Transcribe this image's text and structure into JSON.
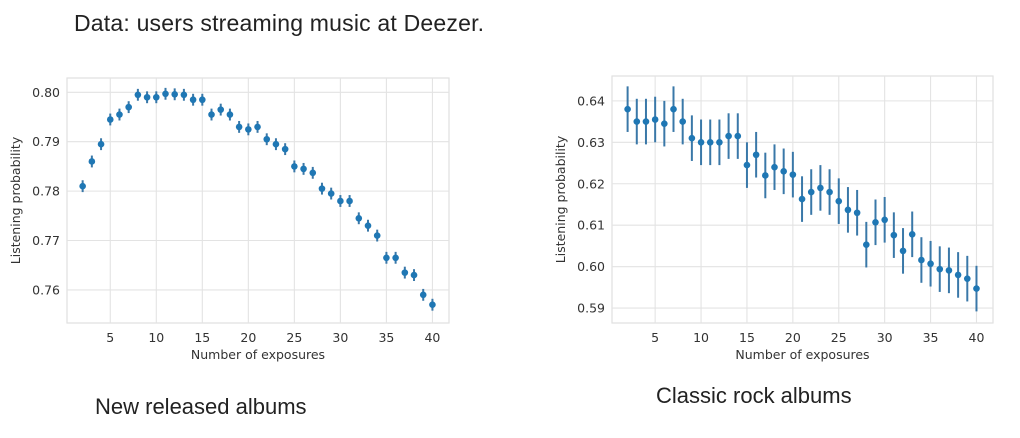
{
  "slide": {
    "title": "Data: users streaming music at Deezer."
  },
  "captions": {
    "left": "New released albums",
    "right": "Classic rock albums"
  },
  "colors": {
    "marker": "#1f77b4",
    "errorbar": "#3a78a8",
    "grid": "#e3e3e3",
    "frame": "#e0e0e0"
  },
  "chart_data": [
    {
      "type": "scatter",
      "title": "New released albums",
      "xlabel": "Number of exposures",
      "ylabel": "Listening probability",
      "xlim": [
        0.3,
        41.8
      ],
      "ylim": [
        0.7533,
        0.8029
      ],
      "xticks": [
        5,
        10,
        15,
        20,
        25,
        30,
        35,
        40
      ],
      "yticks": [
        0.76,
        0.77,
        0.78,
        0.79,
        0.8
      ],
      "ytick_labels": [
        "0.76",
        "0.77",
        "0.78",
        "0.79",
        "0.80"
      ],
      "grid": true,
      "error_bars": true,
      "error_halfwidth": 0.0012,
      "x": [
        2,
        3,
        4,
        5,
        6,
        7,
        8,
        9,
        10,
        11,
        12,
        13,
        14,
        15,
        16,
        17,
        18,
        19,
        20,
        21,
        22,
        23,
        24,
        25,
        26,
        27,
        28,
        29,
        30,
        31,
        32,
        33,
        34,
        35,
        36,
        37,
        38,
        39,
        40
      ],
      "values": [
        0.781,
        0.786,
        0.7895,
        0.7945,
        0.7955,
        0.797,
        0.7995,
        0.799,
        0.799,
        0.7997,
        0.7996,
        0.7995,
        0.7985,
        0.7985,
        0.7955,
        0.7965,
        0.7955,
        0.793,
        0.7925,
        0.793,
        0.7905,
        0.7895,
        0.7885,
        0.785,
        0.7845,
        0.7837,
        0.7805,
        0.7795,
        0.778,
        0.778,
        0.7745,
        0.773,
        0.771,
        0.7665,
        0.7665,
        0.7635,
        0.763,
        0.759,
        0.757
      ]
    },
    {
      "type": "scatter",
      "title": "Classic rock albums",
      "xlabel": "Number of exposures",
      "ylabel": "Listening probability",
      "xlim": [
        0.3,
        41.8
      ],
      "ylim": [
        0.5864,
        0.646
      ],
      "xticks": [
        5,
        10,
        15,
        20,
        25,
        30,
        35,
        40
      ],
      "yticks": [
        0.59,
        0.6,
        0.61,
        0.62,
        0.63,
        0.64
      ],
      "ytick_labels": [
        "0.59",
        "0.60",
        "0.61",
        "0.62",
        "0.63",
        "0.64"
      ],
      "grid": true,
      "error_bars": true,
      "error_halfwidth": 0.0055,
      "x": [
        2,
        3,
        4,
        5,
        6,
        7,
        8,
        9,
        10,
        11,
        12,
        13,
        14,
        15,
        16,
        17,
        18,
        19,
        20,
        21,
        22,
        23,
        24,
        25,
        26,
        27,
        28,
        29,
        30,
        31,
        32,
        33,
        34,
        35,
        36,
        37,
        38,
        39,
        40
      ],
      "values": [
        0.638,
        0.635,
        0.635,
        0.6355,
        0.6345,
        0.638,
        0.635,
        0.631,
        0.63,
        0.63,
        0.63,
        0.6315,
        0.6315,
        0.6245,
        0.627,
        0.622,
        0.624,
        0.623,
        0.6222,
        0.6163,
        0.618,
        0.619,
        0.618,
        0.6158,
        0.6137,
        0.613,
        0.6053,
        0.6107,
        0.6113,
        0.6076,
        0.6038,
        0.6078,
        0.6016,
        0.6007,
        0.5994,
        0.5991,
        0.598,
        0.5971,
        0.5947
      ]
    }
  ]
}
